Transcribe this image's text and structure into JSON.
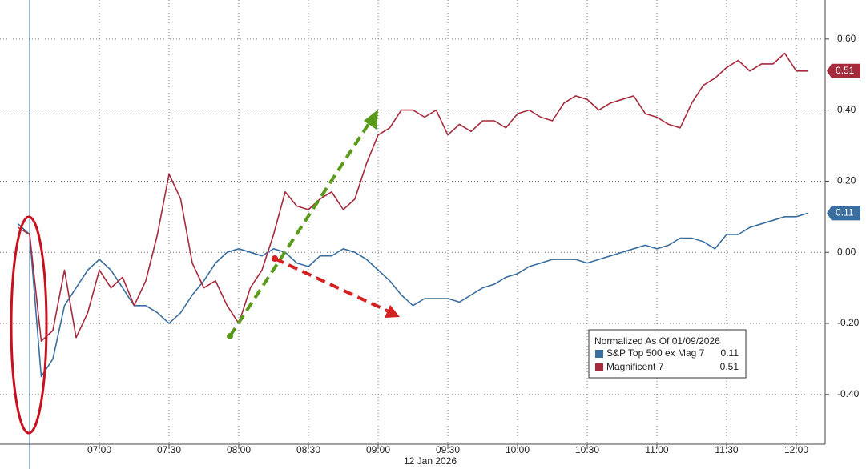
{
  "chart_data": {
    "type": "line",
    "x_label": "12 Jan 2026",
    "legend_title": "Normalized As Of 01/09/2026",
    "x": [
      "06:25",
      "06:30",
      "06:35",
      "06:40",
      "06:45",
      "06:50",
      "06:55",
      "07:00",
      "07:05",
      "07:10",
      "07:15",
      "07:20",
      "07:25",
      "07:30",
      "07:35",
      "07:40",
      "07:45",
      "07:50",
      "07:55",
      "08:00",
      "08:05",
      "08:10",
      "08:15",
      "08:20",
      "08:25",
      "08:30",
      "08:35",
      "08:40",
      "08:45",
      "08:50",
      "08:55",
      "09:00",
      "09:05",
      "09:10",
      "09:15",
      "09:20",
      "09:25",
      "09:30",
      "09:35",
      "09:40",
      "09:45",
      "09:50",
      "09:55",
      "10:00",
      "10:05",
      "10:10",
      "10:15",
      "10:20",
      "10:25",
      "10:30",
      "10:35",
      "10:40",
      "10:45",
      "10:50",
      "10:55",
      "11:00",
      "11:05",
      "11:10",
      "11:15",
      "11:20",
      "11:25",
      "11:30",
      "11:35",
      "11:40",
      "11:45",
      "11:50",
      "11:55",
      "12:00",
      "12:05"
    ],
    "series": [
      {
        "name": "S&P Top 500 ex Mag 7",
        "color": "#3a6e9e",
        "values": [
          0.08,
          0.05,
          -0.35,
          -0.3,
          -0.15,
          -0.1,
          -0.05,
          -0.02,
          -0.05,
          -0.1,
          -0.15,
          -0.15,
          -0.17,
          -0.2,
          -0.17,
          -0.12,
          -0.08,
          -0.03,
          0.0,
          0.01,
          0.0,
          -0.01,
          0.01,
          0.0,
          -0.03,
          -0.04,
          -0.01,
          -0.01,
          0.01,
          0.0,
          -0.02,
          -0.05,
          -0.08,
          -0.12,
          -0.15,
          -0.13,
          -0.13,
          -0.13,
          -0.14,
          -0.12,
          -0.1,
          -0.09,
          -0.07,
          -0.06,
          -0.04,
          -0.03,
          -0.02,
          -0.02,
          -0.02,
          -0.03,
          -0.02,
          -0.01,
          0.0,
          0.01,
          0.02,
          0.01,
          0.02,
          0.04,
          0.04,
          0.03,
          0.01,
          0.05,
          0.05,
          0.07,
          0.08,
          0.09,
          0.1,
          0.1,
          0.11
        ]
      },
      {
        "name": "Magnificent 7",
        "color": "#a52a3c",
        "values": [
          0.07,
          0.05,
          -0.25,
          -0.22,
          -0.05,
          -0.24,
          -0.17,
          -0.05,
          -0.1,
          -0.07,
          -0.15,
          -0.08,
          0.05,
          0.22,
          0.15,
          -0.03,
          -0.1,
          -0.08,
          -0.15,
          -0.2,
          -0.1,
          -0.05,
          0.05,
          0.17,
          0.13,
          0.12,
          0.15,
          0.17,
          0.12,
          0.15,
          0.25,
          0.33,
          0.35,
          0.4,
          0.4,
          0.38,
          0.4,
          0.33,
          0.36,
          0.34,
          0.37,
          0.37,
          0.35,
          0.39,
          0.4,
          0.38,
          0.37,
          0.42,
          0.44,
          0.43,
          0.4,
          0.42,
          0.43,
          0.44,
          0.39,
          0.38,
          0.36,
          0.35,
          0.42,
          0.47,
          0.49,
          0.52,
          0.54,
          0.51,
          0.53,
          0.53,
          0.56,
          0.51,
          0.51
        ]
      }
    ],
    "xticks": [
      "07:00",
      "07:30",
      "08:00",
      "08:30",
      "09:00",
      "09:30",
      "10:00",
      "10:30",
      "11:00",
      "11:30",
      "12:00"
    ],
    "ylim": [
      -0.54,
      0.71
    ],
    "yticks": [
      {
        "value": -0.4,
        "label": "-0.40"
      },
      {
        "value": -0.2,
        "label": "-0.20"
      },
      {
        "value": 0,
        "label": "0.00"
      },
      {
        "value": 0.2,
        "label": "0.20"
      },
      {
        "value": 0.4,
        "label": "0.40"
      },
      {
        "value": 0.6,
        "label": "0.60"
      }
    ],
    "grid": true
  }
}
